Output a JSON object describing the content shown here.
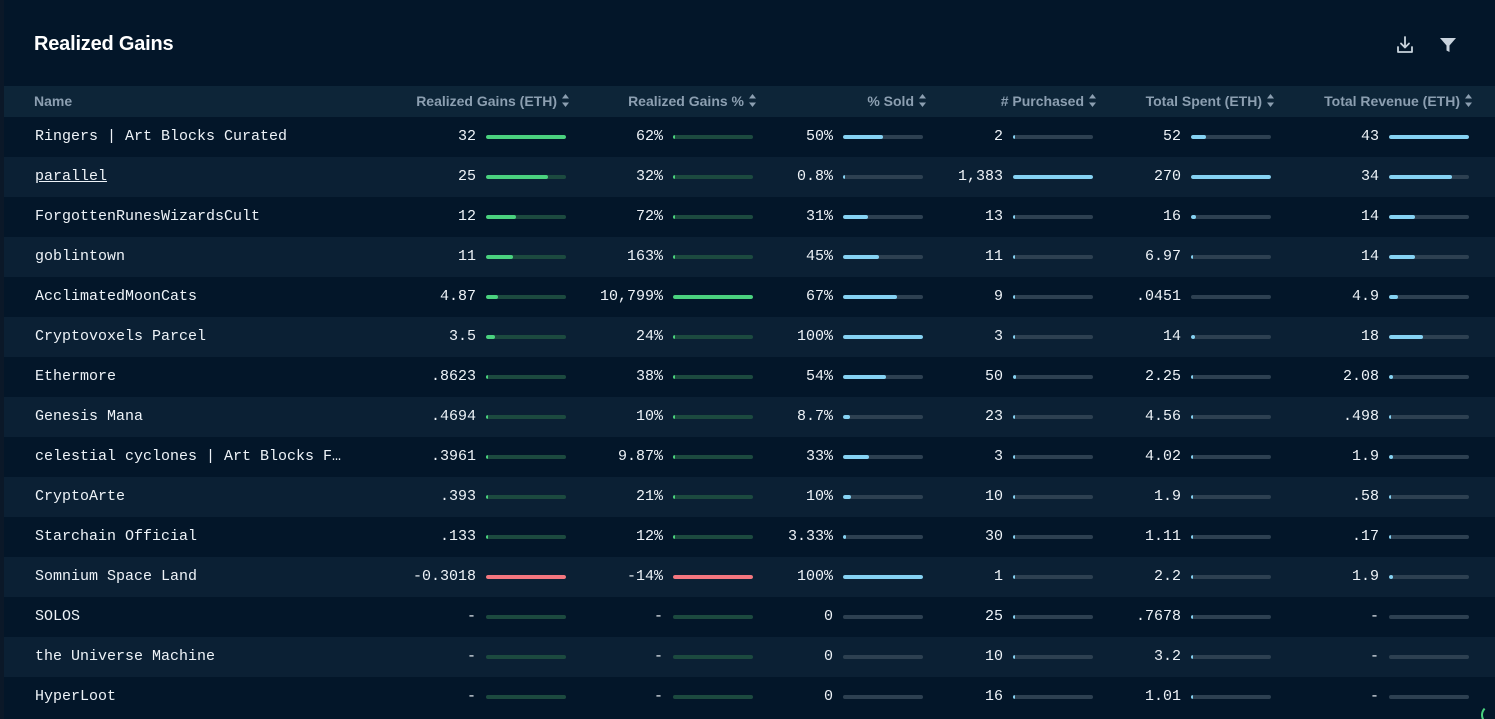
{
  "title": "Realized Gains",
  "header_actions": {
    "download_icon": "download-icon",
    "filter_icon": "filter-icon"
  },
  "colors": {
    "positive": "#4ad27f",
    "negative": "#f4767f",
    "neutral": "#85d2f3",
    "track_green": "#1c4a3f",
    "track_slate": "#2d4051"
  },
  "columns": [
    {
      "key": "name",
      "label": "Name",
      "sortable": false
    },
    {
      "key": "gains",
      "label": "Realized Gains (ETH)",
      "sortable": true
    },
    {
      "key": "gains_pct",
      "label": "Realized Gains %",
      "sortable": true
    },
    {
      "key": "sold",
      "label": "% Sold",
      "sortable": true
    },
    {
      "key": "purchased",
      "label": "# Purchased",
      "sortable": true
    },
    {
      "key": "spent",
      "label": "Total Spent (ETH)",
      "sortable": true
    },
    {
      "key": "revenue",
      "label": "Total Revenue (ETH)",
      "sortable": true
    }
  ],
  "rows": [
    {
      "name": "Ringers | Art Blocks Curated",
      "link": false,
      "gains": "32",
      "gains_fill": 1.0,
      "gains_neg": false,
      "gains_pct": "62%",
      "gains_pct_fill": 0.006,
      "gains_pct_neg": false,
      "sold": "50%",
      "sold_fill": 0.5,
      "purchased": "2",
      "purchased_fill": 0.002,
      "spent": "52",
      "spent_fill": 0.19,
      "revenue": "43",
      "revenue_fill": 1.0
    },
    {
      "name": "parallel",
      "link": true,
      "gains": "25",
      "gains_fill": 0.78,
      "gains_neg": false,
      "gains_pct": "32%",
      "gains_pct_fill": 0.003,
      "gains_pct_neg": false,
      "sold": "0.8%",
      "sold_fill": 0.008,
      "purchased": "1,383",
      "purchased_fill": 1.0,
      "spent": "270",
      "spent_fill": 1.0,
      "revenue": "34",
      "revenue_fill": 0.79
    },
    {
      "name": "ForgottenRunesWizardsCult",
      "link": false,
      "gains": "12",
      "gains_fill": 0.375,
      "gains_neg": false,
      "gains_pct": "72%",
      "gains_pct_fill": 0.007,
      "gains_pct_neg": false,
      "sold": "31%",
      "sold_fill": 0.31,
      "purchased": "13",
      "purchased_fill": 0.009,
      "spent": "16",
      "spent_fill": 0.06,
      "revenue": "14",
      "revenue_fill": 0.33
    },
    {
      "name": "goblintown",
      "link": false,
      "gains": "11",
      "gains_fill": 0.34,
      "gains_neg": false,
      "gains_pct": "163%",
      "gains_pct_fill": 0.015,
      "gains_pct_neg": false,
      "sold": "45%",
      "sold_fill": 0.45,
      "purchased": "11",
      "purchased_fill": 0.008,
      "spent": "6.97",
      "spent_fill": 0.026,
      "revenue": "14",
      "revenue_fill": 0.33
    },
    {
      "name": "AcclimatedMoonCats",
      "link": false,
      "gains": "4.87",
      "gains_fill": 0.15,
      "gains_neg": false,
      "gains_pct": "10,799%",
      "gains_pct_fill": 1.0,
      "gains_pct_neg": false,
      "sold": "67%",
      "sold_fill": 0.67,
      "purchased": "9",
      "purchased_fill": 0.007,
      "spent": ".0451",
      "spent_fill": 0.0,
      "revenue": "4.9",
      "revenue_fill": 0.114
    },
    {
      "name": "Cryptovoxels Parcel",
      "link": false,
      "gains": "3.5",
      "gains_fill": 0.11,
      "gains_neg": false,
      "gains_pct": "24%",
      "gains_pct_fill": 0.002,
      "gains_pct_neg": false,
      "sold": "100%",
      "sold_fill": 1.0,
      "purchased": "3",
      "purchased_fill": 0.002,
      "spent": "14",
      "spent_fill": 0.052,
      "revenue": "18",
      "revenue_fill": 0.42
    },
    {
      "name": "Ethermore",
      "link": false,
      "gains": ".8623",
      "gains_fill": 0.027,
      "gains_neg": false,
      "gains_pct": "38%",
      "gains_pct_fill": 0.004,
      "gains_pct_neg": false,
      "sold": "54%",
      "sold_fill": 0.54,
      "purchased": "50",
      "purchased_fill": 0.036,
      "spent": "2.25",
      "spent_fill": 0.008,
      "revenue": "2.08",
      "revenue_fill": 0.048
    },
    {
      "name": "Genesis Mana",
      "link": false,
      "gains": ".4694",
      "gains_fill": 0.015,
      "gains_neg": false,
      "gains_pct": "10%",
      "gains_pct_fill": 0.001,
      "gains_pct_neg": false,
      "sold": "8.7%",
      "sold_fill": 0.087,
      "purchased": "23",
      "purchased_fill": 0.017,
      "spent": "4.56",
      "spent_fill": 0.017,
      "revenue": ".498",
      "revenue_fill": 0.012
    },
    {
      "name": "celestial cyclones | Art Blocks F…",
      "link": false,
      "gains": ".3961",
      "gains_fill": 0.012,
      "gains_neg": false,
      "gains_pct": "9.87%",
      "gains_pct_fill": 0.001,
      "gains_pct_neg": false,
      "sold": "33%",
      "sold_fill": 0.33,
      "purchased": "3",
      "purchased_fill": 0.002,
      "spent": "4.02",
      "spent_fill": 0.015,
      "revenue": "1.9",
      "revenue_fill": 0.044
    },
    {
      "name": "CryptoArte",
      "link": false,
      "gains": ".393",
      "gains_fill": 0.012,
      "gains_neg": false,
      "gains_pct": "21%",
      "gains_pct_fill": 0.002,
      "gains_pct_neg": false,
      "sold": "10%",
      "sold_fill": 0.1,
      "purchased": "10",
      "purchased_fill": 0.007,
      "spent": "1.9",
      "spent_fill": 0.007,
      "revenue": ".58",
      "revenue_fill": 0.013
    },
    {
      "name": "Starchain Official",
      "link": false,
      "gains": ".133",
      "gains_fill": 0.004,
      "gains_neg": false,
      "gains_pct": "12%",
      "gains_pct_fill": 0.001,
      "gains_pct_neg": false,
      "sold": "3.33%",
      "sold_fill": 0.033,
      "purchased": "30",
      "purchased_fill": 0.022,
      "spent": "1.11",
      "spent_fill": 0.004,
      "revenue": ".17",
      "revenue_fill": 0.004
    },
    {
      "name": "Somnium Space Land",
      "link": false,
      "gains": "-0.3018",
      "gains_fill": 1.0,
      "gains_neg": true,
      "gains_pct": "-14%",
      "gains_pct_fill": 1.0,
      "gains_pct_neg": true,
      "sold": "100%",
      "sold_fill": 1.0,
      "purchased": "1",
      "purchased_fill": 0.001,
      "spent": "2.2",
      "spent_fill": 0.008,
      "revenue": "1.9",
      "revenue_fill": 0.044
    },
    {
      "name": "SOLOS",
      "link": false,
      "gains": "-",
      "gains_fill": 0,
      "gains_neg": false,
      "gains_pct": "-",
      "gains_pct_fill": 0,
      "gains_pct_neg": false,
      "sold": "0",
      "sold_fill": 0,
      "purchased": "25",
      "purchased_fill": 0.018,
      "spent": ".7678",
      "spent_fill": 0.003,
      "revenue": "-",
      "revenue_fill": 0
    },
    {
      "name": "the Universe Machine",
      "link": false,
      "gains": "-",
      "gains_fill": 0,
      "gains_neg": false,
      "gains_pct": "-",
      "gains_pct_fill": 0,
      "gains_pct_neg": false,
      "sold": "0",
      "sold_fill": 0,
      "purchased": "10",
      "purchased_fill": 0.007,
      "spent": "3.2",
      "spent_fill": 0.012,
      "revenue": "-",
      "revenue_fill": 0
    },
    {
      "name": "HyperLoot",
      "link": false,
      "gains": "-",
      "gains_fill": 0,
      "gains_neg": false,
      "gains_pct": "-",
      "gains_pct_fill": 0,
      "gains_pct_neg": false,
      "sold": "0",
      "sold_fill": 0,
      "purchased": "16",
      "purchased_fill": 0.012,
      "spent": "1.01",
      "spent_fill": 0.004,
      "revenue": "-",
      "revenue_fill": 0
    }
  ]
}
